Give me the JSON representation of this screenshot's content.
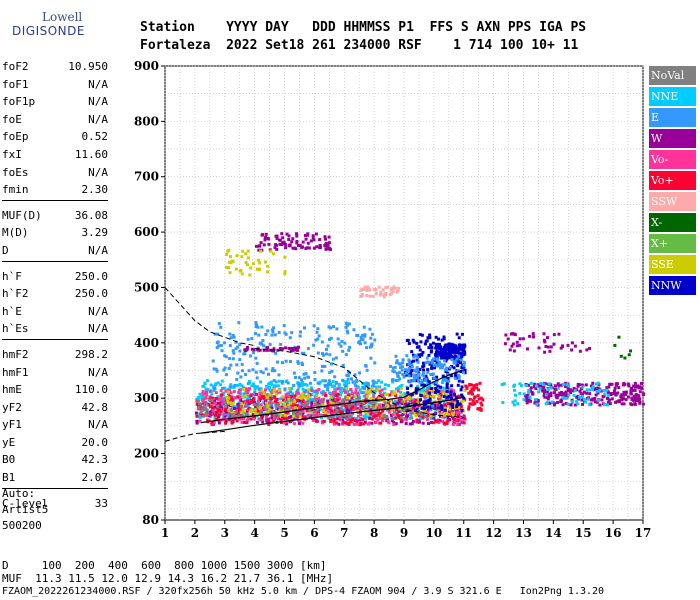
{
  "logo": {
    "line1": "Lowell",
    "line2": "DIGISONDE"
  },
  "header": {
    "line1": "Station    YYYY DAY   DDD HHMMSS P1  FFS S AXN PPS IGA PS",
    "line2": "Fortaleza  2022 Set18 261 234000 RSF    1 714 100 10+ 11"
  },
  "params": [
    [
      [
        "foF2",
        "10.950"
      ],
      [
        "foF1",
        "N/A"
      ],
      [
        "foF1p",
        "N/A"
      ],
      [
        "foE",
        "N/A"
      ],
      [
        "foEp",
        "0.52"
      ],
      [
        "fxI",
        "11.60"
      ],
      [
        "foEs",
        "N/A"
      ],
      [
        "fmin",
        "2.30"
      ]
    ],
    [
      [
        "MUF(D)",
        "36.08"
      ],
      [
        "M(D)",
        "3.29"
      ],
      [
        "D",
        "N/A"
      ]
    ],
    [
      [
        "h`F",
        "250.0"
      ],
      [
        "h`F2",
        "250.0"
      ],
      [
        "h`E",
        "N/A"
      ],
      [
        "h`Es",
        "N/A"
      ]
    ],
    [
      [
        "hmF2",
        "298.2"
      ],
      [
        "hmF1",
        "N/A"
      ],
      [
        "hmE",
        "110.0"
      ],
      [
        "yF2",
        "42.8"
      ],
      [
        "yF1",
        "N/A"
      ],
      [
        "yE",
        "20.0"
      ],
      [
        "B0",
        "42.3"
      ],
      [
        "B1",
        "2.07"
      ]
    ],
    [
      [
        "C-level",
        "33"
      ]
    ]
  ],
  "auto": {
    "l1": "Auto:",
    "l2": "Artist5",
    "l3": "500200"
  },
  "footer": {
    "l1": "D     100  200  400  600  800 1000 1500 3000 [km]",
    "l2": "MUF  11.3 11.5 12.0 12.9 14.3 16.2 21.7 36.1 [MHz]",
    "l3": "FZAOM_2022261234000.RSF / 320fx256h 50 kHz 5.0 km / DPS-4 FZAOM 904 / 3.9 S 321.6 E   Ion2Png 1.3.20"
  },
  "legend": [
    {
      "label": "NoVal",
      "color": "#808080"
    },
    {
      "label": "NNE",
      "color": "#00ccff"
    },
    {
      "label": "E",
      "color": "#3399ff"
    },
    {
      "label": "W",
      "color": "#990099"
    },
    {
      "label": "Vo-",
      "color": "#ff3399"
    },
    {
      "label": "Vo+",
      "color": "#ff0033"
    },
    {
      "label": "SSW",
      "color": "#ffaaaa"
    },
    {
      "label": "X-",
      "color": "#006600"
    },
    {
      "label": "X+",
      "color": "#66bb44"
    },
    {
      "label": "SSE",
      "color": "#cccc00"
    },
    {
      "label": "NNW",
      "color": "#0000cc"
    }
  ],
  "chart_data": {
    "type": "scatter",
    "xlim": [
      1,
      17
    ],
    "ylim": [
      80,
      900
    ],
    "xticks": [
      1,
      2,
      3,
      4,
      5,
      6,
      7,
      8,
      9,
      10,
      11,
      12,
      13,
      14,
      15,
      16,
      17
    ],
    "yticks": [
      80,
      200,
      300,
      400,
      500,
      600,
      700,
      800,
      900
    ],
    "grid": true,
    "legend_position": "right",
    "trace_lower": {
      "x": [
        2.2,
        3,
        4,
        5,
        6,
        7,
        8,
        9,
        9.5,
        10,
        10.5,
        11
      ],
      "y": [
        237,
        243,
        251,
        258,
        265,
        272,
        278,
        284,
        288,
        292,
        296,
        302
      ]
    },
    "trace_profile": {
      "x": [
        2.2,
        3,
        4,
        5,
        6,
        7,
        7.5,
        8,
        8.5,
        9,
        9.5,
        10,
        10.5,
        10.95
      ],
      "y": [
        256,
        262,
        268,
        275,
        283,
        290,
        294,
        296,
        298,
        302,
        315,
        330,
        342,
        350
      ]
    },
    "mufd_left": {
      "x": [
        1,
        1.5,
        2,
        2.5,
        3,
        3.5,
        4
      ],
      "y": [
        500,
        470,
        440,
        420,
        410,
        400,
        395
      ]
    },
    "mufd_right": {
      "x": [
        4,
        5,
        6,
        7,
        8,
        9,
        10,
        11
      ],
      "y": [
        390,
        385,
        375,
        355,
        310,
        280,
        270,
        265
      ]
    },
    "mufd_lower": {
      "x": [
        1,
        1.5,
        2,
        2.5,
        3
      ],
      "y": [
        222,
        230,
        236,
        238,
        240
      ]
    },
    "echo_clusters": [
      {
        "color": "#00ccff",
        "x": [
          2,
          10.5
        ],
        "y": [
          265,
          335
        ],
        "n": 600
      },
      {
        "color": "#3399ff",
        "x": [
          2.5,
          8
        ],
        "y": [
          270,
          440
        ],
        "n": 350
      },
      {
        "color": "#990099",
        "x": [
          2,
          11
        ],
        "y": [
          255,
          300
        ],
        "n": 320
      },
      {
        "color": "#ff3399",
        "x": [
          2,
          11
        ],
        "y": [
          255,
          320
        ],
        "n": 380
      },
      {
        "color": "#ff0033",
        "x": [
          2,
          11
        ],
        "y": [
          255,
          310
        ],
        "n": 280
      },
      {
        "color": "#cccc00",
        "x": [
          3,
          11
        ],
        "y": [
          270,
          320
        ],
        "n": 180
      },
      {
        "color": "#0000cc",
        "x": [
          9,
          11
        ],
        "y": [
          280,
          420
        ],
        "n": 220
      },
      {
        "color": "#0000cc",
        "x": [
          10,
          11
        ],
        "y": [
          375,
          400
        ],
        "n": 160
      },
      {
        "color": "#808080",
        "x": [
          2,
          10
        ],
        "y": [
          265,
          300
        ],
        "n": 120
      },
      {
        "color": "#ffaaaa",
        "x": [
          7.5,
          8.8
        ],
        "y": [
          485,
          505
        ],
        "n": 40
      },
      {
        "color": "#990099",
        "x": [
          4,
          6.5
        ],
        "y": [
          570,
          600
        ],
        "n": 90
      },
      {
        "color": "#cccc00",
        "x": [
          3,
          5
        ],
        "y": [
          525,
          570
        ],
        "n": 40
      },
      {
        "color": "#990099",
        "x": [
          13,
          17
        ],
        "y": [
          290,
          330
        ],
        "n": 250
      },
      {
        "color": "#00ccff",
        "x": [
          12.2,
          16
        ],
        "y": [
          290,
          330
        ],
        "n": 70
      },
      {
        "color": "#990099",
        "x": [
          12.2,
          15.2
        ],
        "y": [
          385,
          420
        ],
        "n": 45
      },
      {
        "color": "#006600",
        "x": [
          16,
          16.6
        ],
        "y": [
          375,
          415
        ],
        "n": 6
      },
      {
        "color": "#ff0033",
        "x": [
          11,
          11.6
        ],
        "y": [
          280,
          330
        ],
        "n": 40
      },
      {
        "color": "#3399ff",
        "x": [
          8.5,
          11
        ],
        "y": [
          330,
          380
        ],
        "n": 120
      },
      {
        "color": "#990099",
        "x": [
          3.6,
          5.5
        ],
        "y": [
          388,
          395
        ],
        "n": 40
      }
    ]
  }
}
